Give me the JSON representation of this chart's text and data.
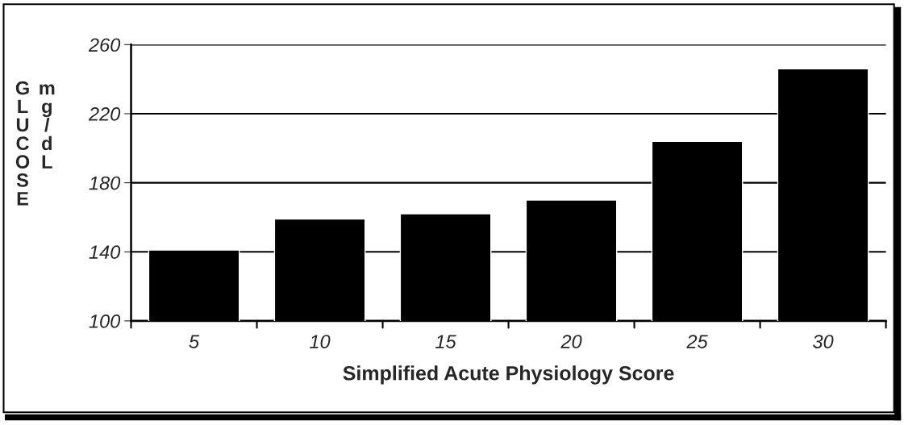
{
  "chart_data": {
    "type": "bar",
    "xlabel": "Simplified Acute Physiology Score",
    "ylabel": "GLUCOSE mg/dL",
    "categories": [
      "5",
      "10",
      "15",
      "20",
      "25",
      "30"
    ],
    "values": [
      141,
      159,
      162,
      170,
      204,
      246
    ],
    "color": "#000000",
    "ylim": [
      100,
      260
    ],
    "yticks": [
      100,
      140,
      180,
      220,
      260
    ],
    "grid": "y"
  }
}
